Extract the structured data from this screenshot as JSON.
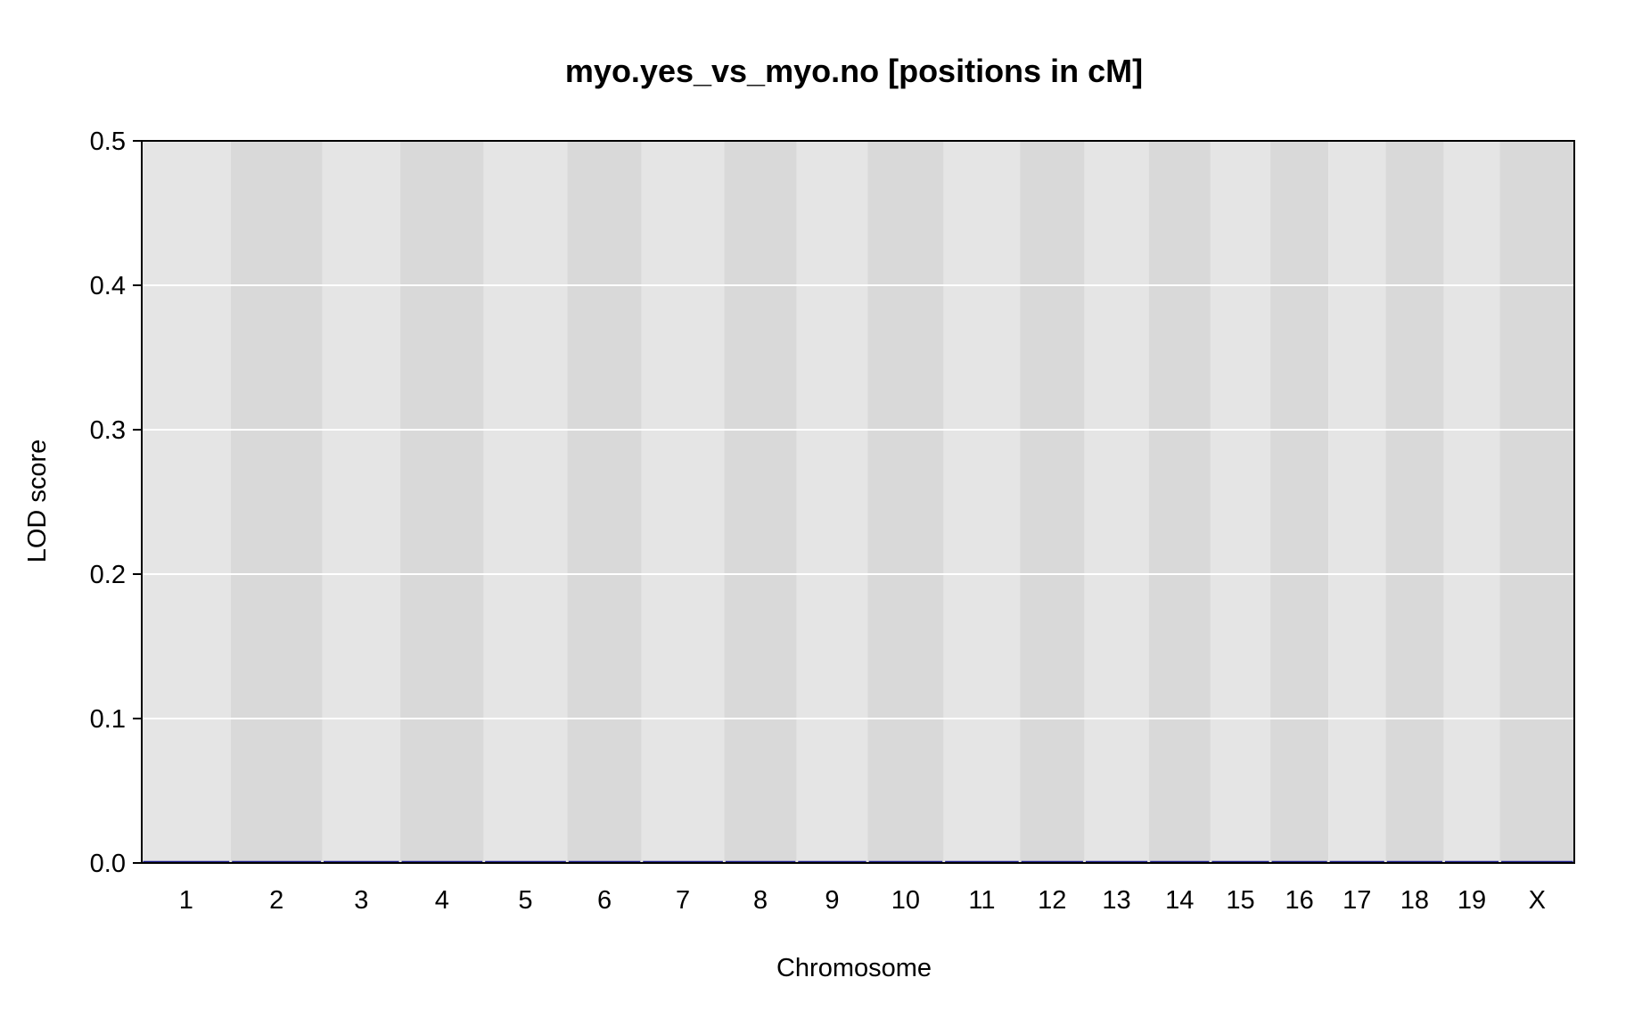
{
  "chart_data": {
    "type": "line",
    "title": "myo.yes_vs_myo.no [positions in cM]",
    "xlabel": "Chromosome",
    "ylabel": "LOD score",
    "ylim": [
      0,
      0.5
    ],
    "yticks": [
      "0.0",
      "0.1",
      "0.2",
      "0.3",
      "0.4",
      "0.5"
    ],
    "grid": true,
    "categories": [
      "1",
      "2",
      "3",
      "4",
      "5",
      "6",
      "7",
      "8",
      "9",
      "10",
      "11",
      "12",
      "13",
      "14",
      "15",
      "16",
      "17",
      "18",
      "19",
      "X"
    ],
    "relative_widths": [
      98,
      101,
      86,
      92,
      92,
      82,
      91,
      80,
      78,
      84,
      84,
      71,
      71,
      68,
      66,
      64,
      63,
      64,
      62,
      82
    ],
    "series": [
      {
        "values": [
          0,
          0,
          0,
          0,
          0,
          0,
          0,
          0,
          0,
          0,
          0,
          0,
          0,
          0,
          0,
          0,
          0,
          0,
          0,
          0
        ]
      }
    ],
    "colors": {
      "band_light": "#e5e5e5",
      "band_dark": "#d9d9d9",
      "gridline": "#ffffff",
      "line": "#1c1c8c",
      "frame": "#000000"
    }
  }
}
